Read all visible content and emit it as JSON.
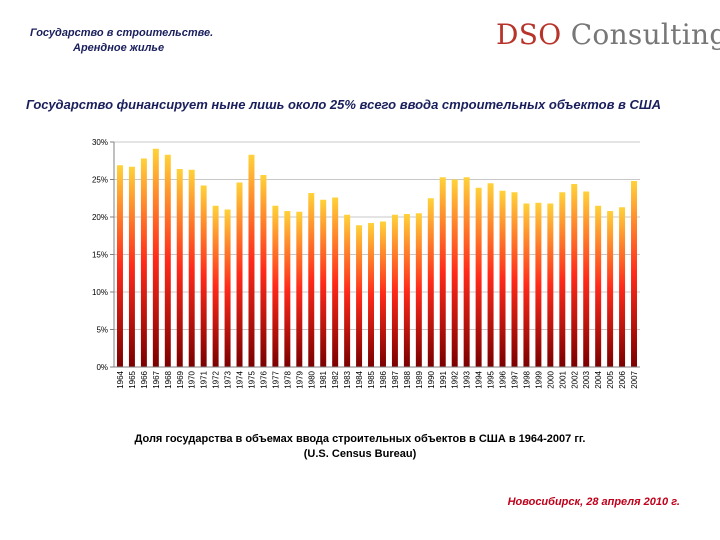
{
  "header": {
    "line1": "Государство в строительстве.",
    "line2": "Арендное жилье"
  },
  "logo": {
    "prefix": "DSO",
    "suffix": "Consulting"
  },
  "headline": "Государство финансирует ныне лишь около 25% всего ввода строительных объектов в США",
  "caption": {
    "line1": "Доля государства в  объемах ввода строительных объектов в США в 1964-2007 гг.",
    "line2": "(U.S. Census Bureau)"
  },
  "footer": "Новосибирск, 28 апреля 2010 г.",
  "colors": {
    "bar_top": "#ffd23a",
    "bar_mid": "#ff2a1a",
    "bar_bottom": "#7a0000",
    "grid": "#c8c8c8",
    "axis": "#808080"
  },
  "chart_data": {
    "type": "bar",
    "title": "",
    "xlabel": "",
    "ylabel": "",
    "ylim": [
      0,
      30
    ],
    "yticks": [
      "0%",
      "5%",
      "10%",
      "15%",
      "20%",
      "25%",
      "30%"
    ],
    "grid": true,
    "categories": [
      "1964",
      "1965",
      "1966",
      "1967",
      "1968",
      "1969",
      "1970",
      "1971",
      "1972",
      "1973",
      "1974",
      "1975",
      "1976",
      "1977",
      "1978",
      "1979",
      "1980",
      "1981",
      "1982",
      "1983",
      "1984",
      "1985",
      "1986",
      "1987",
      "1988",
      "1989",
      "1990",
      "1991",
      "1992",
      "1993",
      "1994",
      "1995",
      "1996",
      "1997",
      "1998",
      "1999",
      "2000",
      "2001",
      "2002",
      "2003",
      "2004",
      "2005",
      "2006",
      "2007"
    ],
    "values": [
      26.9,
      26.7,
      27.8,
      29.1,
      28.3,
      26.4,
      26.3,
      24.2,
      21.5,
      21.0,
      24.6,
      28.3,
      25.6,
      21.5,
      20.8,
      20.7,
      23.2,
      22.3,
      22.6,
      20.3,
      18.9,
      19.2,
      19.4,
      20.3,
      20.4,
      20.5,
      22.5,
      25.3,
      25.0,
      25.3,
      23.9,
      24.5,
      23.5,
      23.3,
      21.8,
      21.9,
      21.8,
      23.3,
      24.4,
      23.4,
      21.5,
      20.8,
      21.3,
      24.8
    ]
  }
}
